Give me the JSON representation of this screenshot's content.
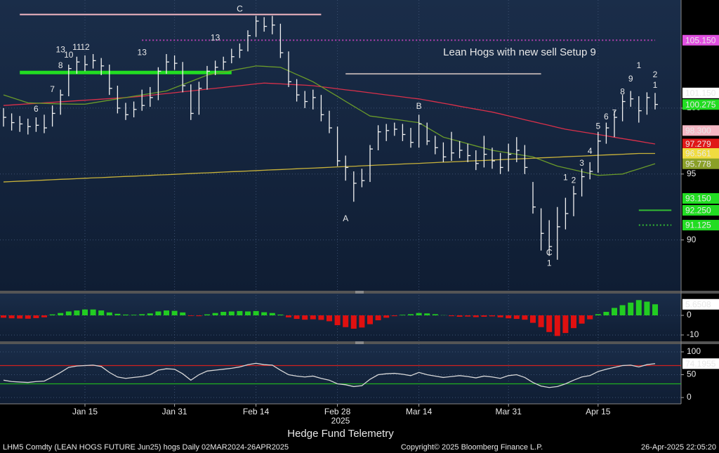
{
  "chart_data": [
    {
      "type": "ohlc",
      "title": "Lean Hogs with new sell Setup 9",
      "xlabel": "2025",
      "categories": [
        null,
        null,
        null,
        null,
        null,
        null,
        null,
        null,
        null,
        null,
        "Jan 15",
        null,
        null,
        null,
        null,
        null,
        null,
        null,
        null,
        null,
        null,
        "Jan 31",
        null,
        null,
        null,
        null,
        null,
        null,
        null,
        null,
        null,
        "Feb 14",
        null,
        null,
        null,
        null,
        null,
        null,
        null,
        null,
        null,
        "Feb 28",
        null,
        null,
        null,
        null,
        null,
        null,
        null,
        null,
        null,
        "Mar 14",
        null,
        null,
        null,
        null,
        null,
        null,
        null,
        null,
        null,
        null,
        "Mar 31",
        null,
        null,
        null,
        null,
        null,
        null,
        null,
        null,
        null,
        null,
        "Apr 15",
        null,
        null,
        null,
        null,
        null,
        null,
        null
      ],
      "high": [
        100.0,
        99.6,
        99.4,
        99.2,
        99.3,
        99.5,
        100.2,
        101.4,
        103.3,
        103.9,
        104.0,
        104.1,
        103.8,
        103.3,
        101.7,
        100.4,
        100.5,
        101.4,
        101.6,
        103.1,
        104.1,
        104.0,
        103.5,
        101.8,
        102.0,
        103.2,
        103.6,
        103.9,
        104.5,
        104.9,
        105.9,
        107.0,
        106.9,
        107.0,
        106.4,
        104.3,
        102.2,
        101.3,
        101.4,
        101.0,
        99.8,
        98.6,
        96.4,
        95.2,
        95.4,
        97.2,
        98.7,
        98.8,
        98.9,
        98.8,
        98.5,
        99.5,
        98.9,
        97.9,
        97.4,
        98.2,
        97.5,
        97.3,
        96.8,
        97.9,
        97.0,
        96.6,
        97.3,
        97.8,
        97.2,
        94.4,
        92.4,
        91.5,
        92.5,
        93.2,
        94.1,
        95.4,
        95.9,
        98.2,
        98.9,
        99.8,
        101.0,
        101.3,
        100.9,
        101.2,
        101.15
      ],
      "low": [
        98.6,
        98.3,
        98.2,
        98.0,
        98.2,
        98.1,
        98.6,
        99.5,
        100.9,
        102.6,
        102.8,
        103.0,
        102.5,
        101.0,
        99.6,
        99.1,
        99.3,
        99.8,
        100.1,
        100.6,
        102.6,
        102.9,
        101.2,
        99.1,
        99.5,
        101.4,
        102.5,
        102.9,
        103.4,
        103.8,
        104.3,
        105.4,
        105.8,
        105.6,
        103.8,
        101.6,
        100.5,
        100.0,
        99.9,
        99.0,
        98.1,
        95.6,
        94.5,
        92.9,
        94.0,
        94.4,
        96.8,
        97.5,
        97.9,
        97.5,
        97.0,
        97.0,
        97.2,
        96.5,
        95.9,
        96.0,
        96.2,
        95.9,
        95.3,
        95.5,
        95.4,
        95.0,
        95.2,
        95.9,
        95.0,
        92.0,
        89.2,
        88.8,
        88.5,
        90.8,
        91.8,
        93.3,
        94.6,
        95.1,
        97.3,
        97.8,
        99.0,
        100.1,
        98.9,
        99.5,
        99.9
      ],
      "close": [
        99.3,
        98.9,
        98.8,
        98.6,
        98.7,
        98.5,
        99.6,
        101.0,
        103.0,
        103.5,
        103.3,
        103.6,
        103.2,
        101.5,
        100.0,
        99.5,
        99.9,
        100.2,
        100.8,
        102.8,
        103.5,
        103.4,
        101.7,
        99.6,
        101.5,
        102.8,
        103.1,
        103.5,
        103.9,
        104.4,
        105.5,
        106.6,
        106.2,
        106.3,
        104.2,
        102.0,
        101.0,
        100.5,
        100.8,
        99.5,
        98.5,
        96.0,
        95.5,
        94.3,
        94.5,
        96.9,
        98.2,
        98.3,
        98.4,
        98.0,
        97.4,
        98.8,
        97.5,
        97.0,
        96.3,
        96.6,
        96.8,
        96.4,
        95.8,
        96.5,
        96.0,
        95.5,
        96.5,
        96.8,
        95.5,
        92.5,
        90.5,
        89.5,
        91.0,
        92.0,
        93.5,
        94.8,
        95.2,
        97.5,
        98.5,
        99.3,
        100.5,
        100.7,
        99.8,
        100.8,
        100.28
      ],
      "color": "#f2f2f2",
      "ylim": [
        86.2,
        108.2
      ],
      "yticks": [
        90,
        95,
        100
      ],
      "grid": true,
      "overlays": [
        {
          "color": "#d9304a",
          "values": [
            100.2,
            100.24,
            100.28,
            100.32,
            100.36,
            100.4,
            100.44,
            100.48,
            100.52,
            100.56,
            100.6,
            100.64,
            100.68,
            100.72,
            100.76,
            100.8,
            100.85,
            100.9,
            100.97,
            101.04,
            101.1,
            101.17,
            101.24,
            101.3,
            101.37,
            101.44,
            101.5,
            101.57,
            101.64,
            101.7,
            101.77,
            101.84,
            101.9,
            101.87,
            101.84,
            101.8,
            101.77,
            101.74,
            101.7,
            101.62,
            101.55,
            101.47,
            101.39,
            101.32,
            101.24,
            101.16,
            101.08,
            101.0,
            100.93,
            100.85,
            100.77,
            100.7,
            100.59,
            100.48,
            100.37,
            100.26,
            100.14,
            100.03,
            99.92,
            99.81,
            99.7,
            99.56,
            99.41,
            99.27,
            99.12,
            98.98,
            98.83,
            98.69,
            98.54,
            98.4,
            98.3,
            98.2,
            98.1,
            98.0,
            97.9,
            97.79,
            97.69,
            97.59,
            97.49,
            97.38,
            97.28
          ]
        },
        {
          "color": "#6a9a2a",
          "values": [
            101.0,
            100.8,
            100.6,
            100.4,
            100.38,
            100.36,
            100.34,
            100.32,
            100.31,
            100.3,
            100.3,
            100.4,
            100.5,
            100.6,
            100.7,
            100.8,
            100.9,
            101.0,
            101.1,
            101.2,
            101.3,
            101.54,
            101.78,
            102.02,
            102.26,
            102.5,
            102.62,
            102.73,
            102.85,
            102.97,
            103.08,
            103.2,
            103.17,
            103.13,
            103.1,
            102.83,
            102.55,
            102.28,
            102.0,
            101.63,
            101.26,
            100.89,
            100.51,
            100.14,
            99.77,
            99.4,
            99.32,
            99.23,
            99.15,
            99.07,
            98.98,
            98.9,
            98.53,
            98.17,
            97.8,
            97.63,
            97.47,
            97.3,
            97.13,
            96.97,
            96.8,
            96.7,
            96.6,
            96.5,
            96.4,
            96.3,
            96.07,
            95.83,
            95.6,
            95.46,
            95.32,
            95.18,
            95.04,
            94.9,
            94.93,
            94.97,
            95.0,
            95.2,
            95.39,
            95.59,
            95.78
          ]
        },
        {
          "color": "#c8b23a",
          "values": [
            94.4,
            94.43,
            94.46,
            94.48,
            94.51,
            94.54,
            94.57,
            94.6,
            94.62,
            94.65,
            94.68,
            94.71,
            94.73,
            94.76,
            94.79,
            94.82,
            94.84,
            94.87,
            94.9,
            94.93,
            94.95,
            94.98,
            95.01,
            95.04,
            95.07,
            95.09,
            95.12,
            95.15,
            95.18,
            95.2,
            95.23,
            95.26,
            95.29,
            95.32,
            95.34,
            95.37,
            95.4,
            95.43,
            95.45,
            95.48,
            95.51,
            95.54,
            95.57,
            95.59,
            95.62,
            95.65,
            95.68,
            95.7,
            95.73,
            95.76,
            95.79,
            95.81,
            95.84,
            95.87,
            95.9,
            95.92,
            95.95,
            95.98,
            96.01,
            96.03,
            96.06,
            96.09,
            96.12,
            96.14,
            96.17,
            96.2,
            96.23,
            96.25,
            96.28,
            96.31,
            96.34,
            96.36,
            96.39,
            96.42,
            96.45,
            96.47,
            96.5,
            96.53,
            96.56,
            96.56,
            96.56
          ]
        }
      ],
      "levels": [
        {
          "value": 107.1,
          "from": 2,
          "to": 39,
          "color": "#f5b8c4",
          "style": "solid"
        },
        {
          "value": 105.15,
          "from": 17,
          "to": 80,
          "color": "#b040b0",
          "style": "dotted"
        },
        {
          "value": 102.7,
          "from": 2,
          "to": 28,
          "color": "#22dd22",
          "style": "thick"
        },
        {
          "value": 102.6,
          "from": 42,
          "to": 66,
          "color": "#b0a8a8",
          "style": "solid"
        },
        {
          "value": 92.25,
          "from": 78,
          "to": 82,
          "color": "#33bb33",
          "style": "solid"
        },
        {
          "value": 91.125,
          "from": 78,
          "to": 82,
          "color": "#33bb33",
          "style": "dotted"
        }
      ],
      "price_labels": [
        {
          "value": 105.15,
          "label": "105.150",
          "color": "#e050e0",
          "text_color": "#222222"
        },
        {
          "value": 101.15,
          "label": "101.150",
          "color": "#ffffff",
          "text_color": "#000000"
        },
        {
          "value": 100.275,
          "color": "#22dd22",
          "text_color": "#000000"
        },
        {
          "value": 98.3,
          "label": "98.300",
          "color": "#f5b8c4",
          "text_color": "#000000"
        },
        {
          "value": 97.279,
          "color": "#e01818",
          "text_color": "#ffffff"
        },
        {
          "value": 96.561,
          "color": "#f0dc40",
          "text_color": "#000000"
        },
        {
          "value": 95.778,
          "color": "#8aa028",
          "text_color": "#ffffff"
        },
        {
          "value": 93.15,
          "label": "93.150",
          "color": "#22dd22",
          "text_color": "#000000"
        },
        {
          "value": 92.25,
          "label": "92.250",
          "color": "#22dd22",
          "text_color": "#000000"
        },
        {
          "value": 91.125,
          "color": "#22dd22",
          "text_color": "#000000"
        }
      ],
      "annotations": [
        {
          "text": "6",
          "bar": 4,
          "y": 99.9,
          "color": "#e02020"
        },
        {
          "text": "7",
          "bar": 6,
          "y": 101.4,
          "color": "#e02020"
        },
        {
          "text": "8",
          "bar": 7,
          "y": 103.2,
          "color": "#e02020"
        },
        {
          "text": "13",
          "bar": 7,
          "y": 104.4,
          "color": "#e8a030"
        },
        {
          "text": "10",
          "bar": 8,
          "y": 104.0,
          "color": "#e02020"
        },
        {
          "text": "11",
          "bar": 9,
          "y": 104.6,
          "color": "#e02020"
        },
        {
          "text": "12",
          "bar": 10,
          "y": 104.6,
          "color": "#e02020"
        },
        {
          "text": "13",
          "bar": 17,
          "y": 104.2,
          "color": "#e02020"
        },
        {
          "text": "13",
          "bar": 26,
          "y": 105.3,
          "color": "#cc44cc"
        },
        {
          "text": "C",
          "bar": 29,
          "y": 107.5,
          "color": "#e8d040"
        },
        {
          "text": "A",
          "bar": 42,
          "y": 91.6,
          "color": "#40c8e0"
        },
        {
          "text": "B",
          "bar": 51,
          "y": 100.1,
          "color": "#40c8e0"
        },
        {
          "text": "C",
          "bar": 67,
          "y": 89.0,
          "color": "#40c8e0"
        },
        {
          "text": "1",
          "bar": 67,
          "y": 88.2,
          "color": "#e8d040"
        },
        {
          "text": "1",
          "bar": 69,
          "y": 94.7,
          "color": "#40e040"
        },
        {
          "text": "2",
          "bar": 70,
          "y": 94.5,
          "color": "#40e040"
        },
        {
          "text": "3",
          "bar": 71,
          "y": 95.8,
          "color": "#40e040"
        },
        {
          "text": "4",
          "bar": 72,
          "y": 96.7,
          "color": "#40e040"
        },
        {
          "text": "5",
          "bar": 73,
          "y": 98.6,
          "color": "#40e040"
        },
        {
          "text": "6",
          "bar": 74,
          "y": 99.3,
          "color": "#40e040"
        },
        {
          "text": "7",
          "bar": 75,
          "y": 99.6,
          "color": "#40e040"
        },
        {
          "text": "8",
          "bar": 76,
          "y": 101.2,
          "color": "#40e040"
        },
        {
          "text": "9",
          "bar": 77,
          "y": 102.2,
          "color": "#40e040"
        },
        {
          "text": "1",
          "bar": 78,
          "y": 103.2,
          "color": "#e02020"
        },
        {
          "text": "2",
          "bar": 80,
          "y": 102.5,
          "color": "#e8d040"
        },
        {
          "text": "1",
          "bar": 80,
          "y": 101.7,
          "color": "#40c8e0"
        }
      ]
    },
    {
      "type": "bar",
      "values": [
        -1.2,
        -1.5,
        -1.6,
        -1.7,
        -1.4,
        -1.0,
        0.5,
        1.2,
        2.0,
        2.5,
        3.0,
        3.0,
        2.5,
        1.5,
        0.8,
        0.4,
        0.3,
        0.6,
        1.0,
        2.0,
        2.5,
        2.3,
        1.5,
        -0.3,
        -0.4,
        0.5,
        1.2,
        1.8,
        2.0,
        2.2,
        2.0,
        2.2,
        1.6,
        1.2,
        0.4,
        -1.0,
        -1.8,
        -2.2,
        -2.0,
        -2.3,
        -3.0,
        -5.0,
        -6.0,
        -6.8,
        -6.2,
        -4.5,
        -2.5,
        -1.2,
        -0.4,
        0.3,
        0.6,
        1.2,
        1.0,
        0.6,
        0.1,
        -0.4,
        -0.7,
        -0.6,
        -0.9,
        -0.7,
        -0.5,
        -1.0,
        -1.5,
        -1.8,
        -2.2,
        -3.8,
        -6.0,
        -8.5,
        -10.5,
        -9.0,
        -6.5,
        -4.2,
        -2.0,
        0.6,
        1.8,
        3.8,
        5.2,
        6.5,
        7.8,
        7.0,
        5.65
      ],
      "colors": {
        "up": "#22cc22",
        "down": "#e01010"
      },
      "ylim": [
        -13.6,
        10.4
      ],
      "yticks": [
        0,
        -10
      ],
      "grid": true,
      "last_value": 5.6508
    },
    {
      "type": "line",
      "values": [
        38,
        35,
        34,
        33,
        35,
        36,
        45,
        55,
        66,
        69,
        70,
        71,
        68,
        55,
        45,
        42,
        44,
        46,
        50,
        60,
        63,
        62,
        52,
        38,
        50,
        58,
        60,
        62,
        64,
        67,
        72,
        75,
        72,
        71,
        60,
        50,
        47,
        45,
        47,
        42,
        38,
        30,
        28,
        24,
        26,
        40,
        50,
        52,
        53,
        51,
        48,
        55,
        50,
        47,
        44,
        46,
        48,
        46,
        43,
        47,
        45,
        42,
        48,
        50,
        44,
        33,
        25,
        22,
        24,
        30,
        38,
        45,
        48,
        57,
        62,
        66,
        70,
        71,
        67,
        72,
        74.1955
      ],
      "color": "#d8d8d8",
      "ylim": [
        -13.8,
        116.9
      ],
      "yticks": [
        0,
        50,
        100
      ],
      "grid": true,
      "levels": [
        {
          "value": 70,
          "color": "#d02020"
        },
        {
          "value": 30,
          "color": "#20b020"
        }
      ],
      "last_value": 74.1955
    }
  ],
  "caption": "Hedge Fund Telemetry",
  "footer": {
    "left": "LHM5 Comdty (LEAN HOGS FUTURE  Jun25) hogs  Daily 02MAR2024-26APR2025",
    "center": "Copyright© 2025 Bloomberg Finance L.P.",
    "right": "26-Apr-2025 22:05:20"
  }
}
